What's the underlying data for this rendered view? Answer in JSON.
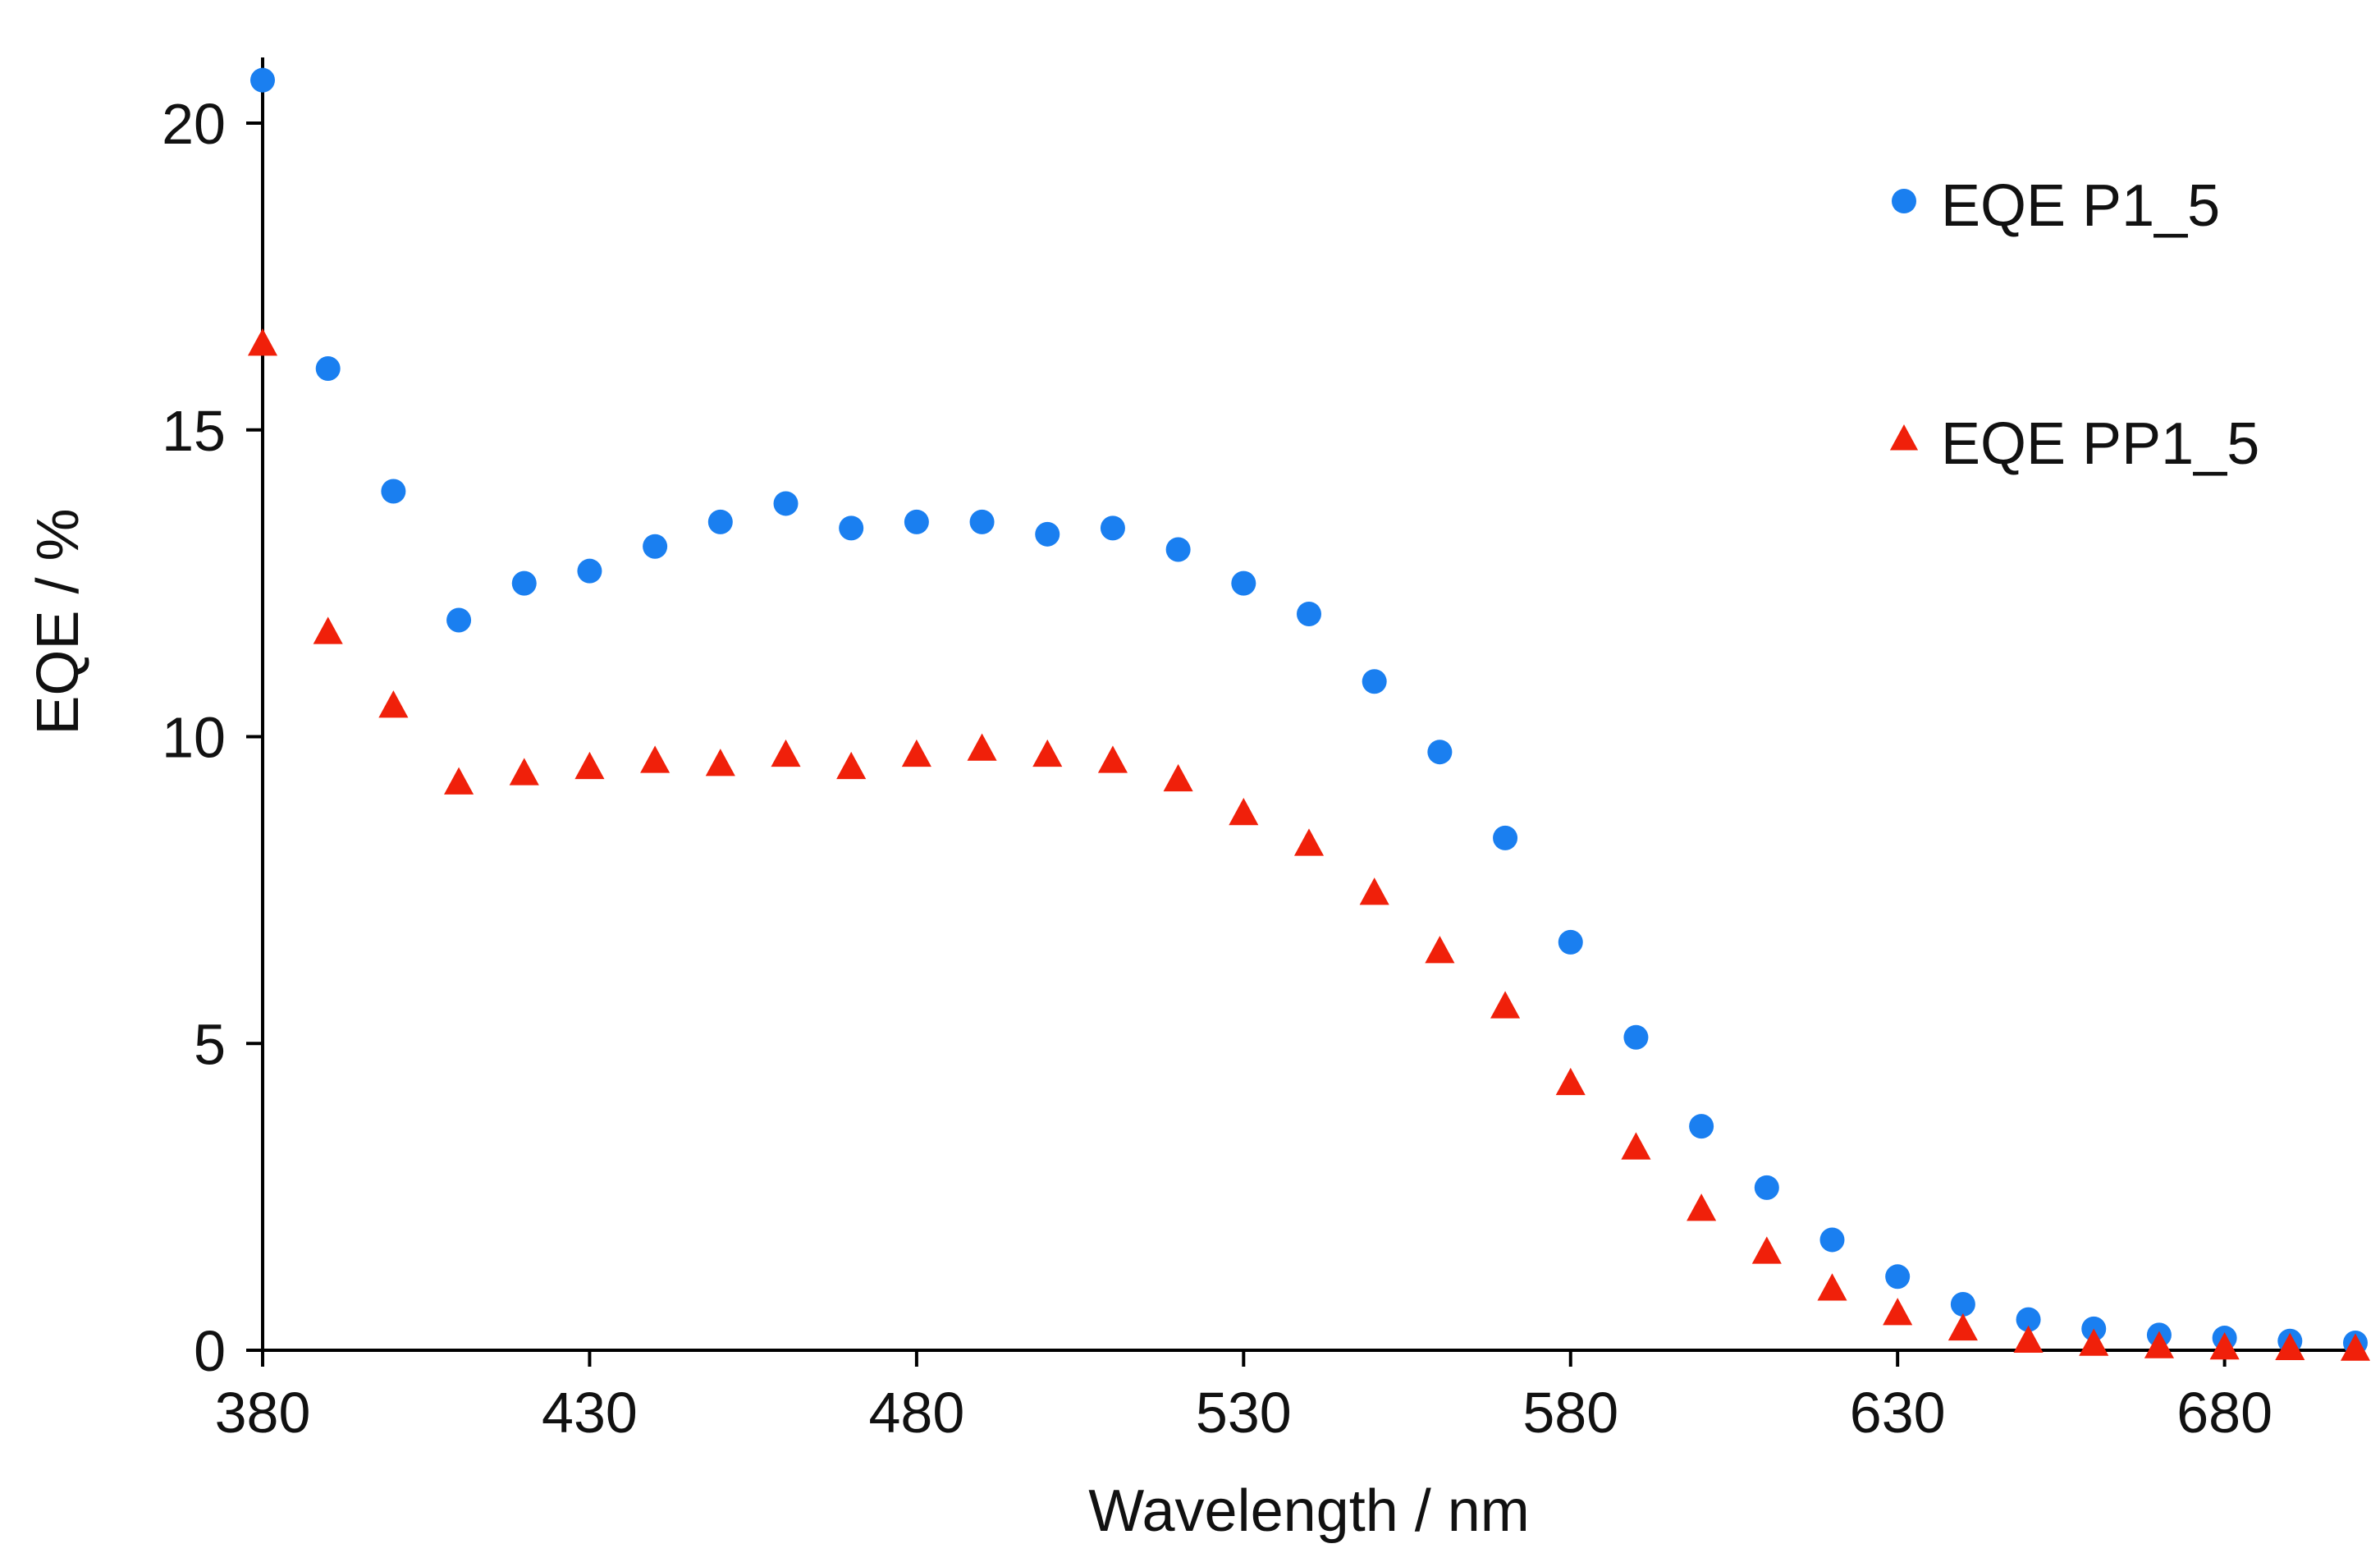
{
  "chart_data": {
    "type": "scatter",
    "title": "",
    "xlabel": "Wavelength / nm",
    "ylabel": "EQE / %",
    "xlim": [
      380,
      700
    ],
    "ylim": [
      0,
      21
    ],
    "xticks": [
      380,
      430,
      480,
      530,
      580,
      630,
      680
    ],
    "yticks": [
      0,
      5,
      10,
      15,
      20
    ],
    "grid": false,
    "legend_position": "top-right",
    "x": [
      380,
      390,
      400,
      410,
      420,
      430,
      440,
      450,
      460,
      470,
      480,
      490,
      500,
      510,
      520,
      530,
      540,
      550,
      560,
      570,
      580,
      590,
      600,
      610,
      620,
      630,
      640,
      650,
      660,
      670,
      680,
      690,
      700
    ],
    "series": [
      {
        "name": "EQE P1_5",
        "marker": "circle",
        "color": "#1a7ff0",
        "values": [
          20.7,
          16.0,
          14.0,
          11.9,
          12.5,
          12.7,
          13.1,
          13.5,
          13.8,
          13.4,
          13.5,
          13.5,
          13.3,
          13.4,
          13.05,
          12.5,
          12.0,
          10.9,
          9.75,
          8.35,
          6.65,
          5.1,
          3.65,
          2.65,
          1.8,
          1.2,
          0.75,
          0.5,
          0.35,
          0.25,
          0.2,
          0.15,
          0.12
        ]
      },
      {
        "name": "EQE PP1_5",
        "marker": "triangle",
        "color": "#f0200a",
        "values": [
          16.4,
          11.7,
          10.5,
          9.25,
          9.4,
          9.5,
          9.6,
          9.55,
          9.7,
          9.5,
          9.7,
          9.8,
          9.7,
          9.6,
          9.3,
          8.75,
          8.25,
          7.45,
          6.5,
          5.6,
          4.35,
          3.3,
          2.3,
          1.6,
          1.0,
          0.6,
          0.35,
          0.15,
          0.1,
          0.06,
          0.04,
          0.03,
          0.02
        ]
      }
    ]
  }
}
